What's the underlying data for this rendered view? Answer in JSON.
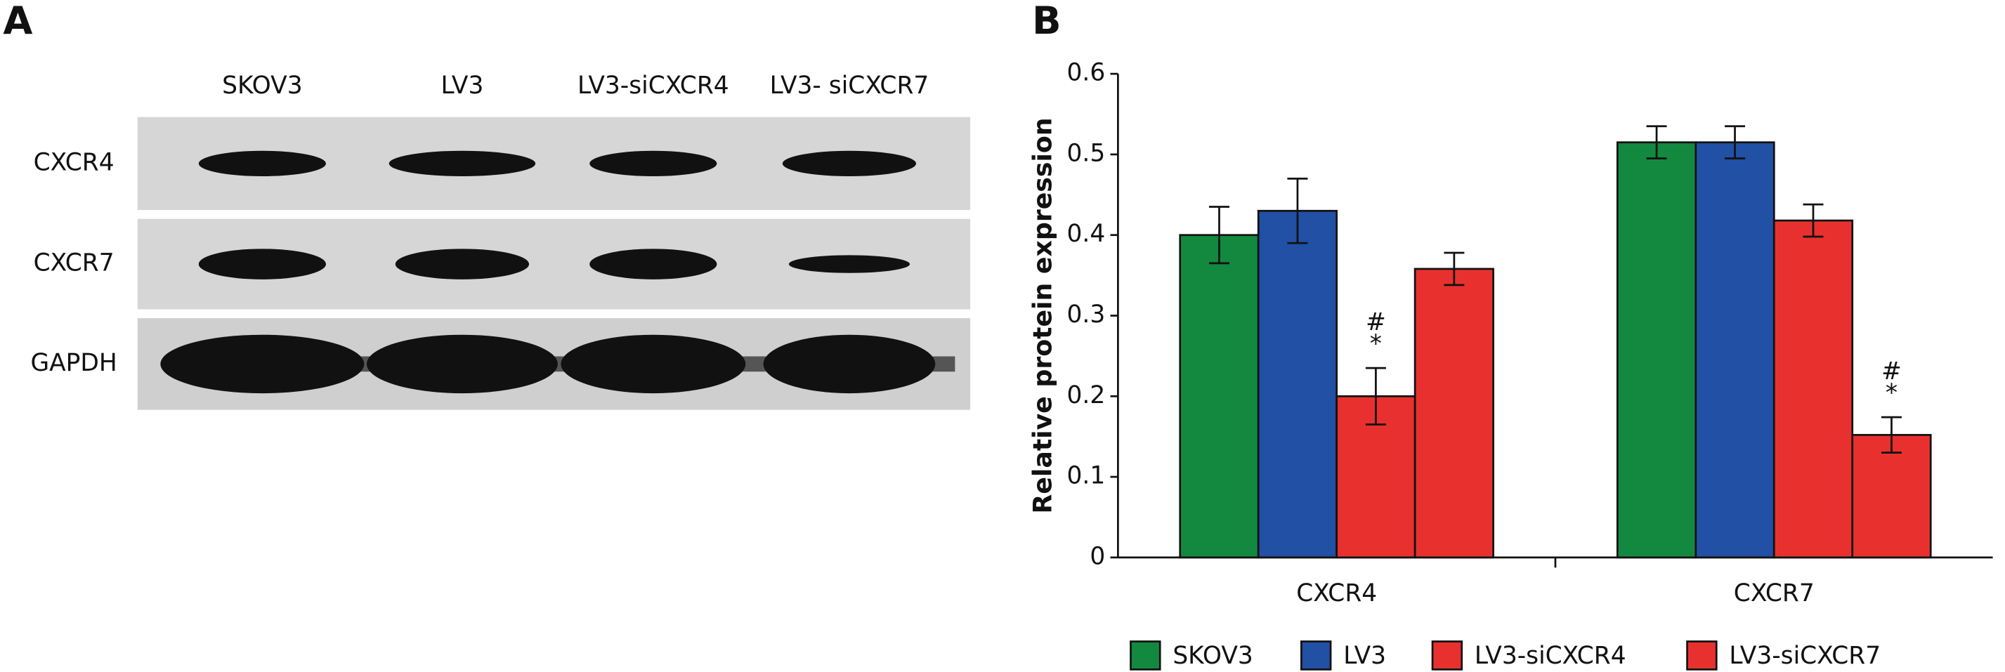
{
  "blot": {
    "panel_label": "A",
    "columns": [
      "SKOV3",
      "LV3",
      "LV3-siCXCR4",
      "LV3- siCXCR7"
    ],
    "rows": [
      "CXCR4",
      "CXCR7",
      "GAPDH"
    ]
  },
  "chart_data": {
    "type": "bar",
    "panel_label": "B",
    "ylabel": "Relative protein expression",
    "categories": [
      "CXCR4",
      "CXCR7"
    ],
    "series": [
      {
        "name": "SKOV3",
        "color": "#12893f",
        "values": [
          0.4,
          0.515
        ],
        "errors": [
          0.035,
          0.02
        ]
      },
      {
        "name": "LV3",
        "color": "#2150a5",
        "values": [
          0.43,
          0.515
        ],
        "errors": [
          0.04,
          0.02
        ]
      },
      {
        "name": "LV3-siCXCR4",
        "color": "#e8312e",
        "values": [
          0.2,
          0.418
        ],
        "errors": [
          0.035,
          0.02
        ],
        "value_annotations": [
          [
            "#",
            "*"
          ],
          null
        ]
      },
      {
        "name": "LV3-siCXCR7",
        "color": "#e8312e",
        "values": [
          0.358,
          0.152
        ],
        "errors": [
          0.02,
          0.022
        ],
        "value_annotations": [
          null,
          [
            "#",
            "*"
          ]
        ]
      }
    ],
    "ylim": [
      0,
      0.6
    ],
    "yticks": [
      0,
      0.1,
      0.2,
      0.3,
      0.4,
      0.5,
      0.6
    ],
    "legend": "bottom"
  }
}
